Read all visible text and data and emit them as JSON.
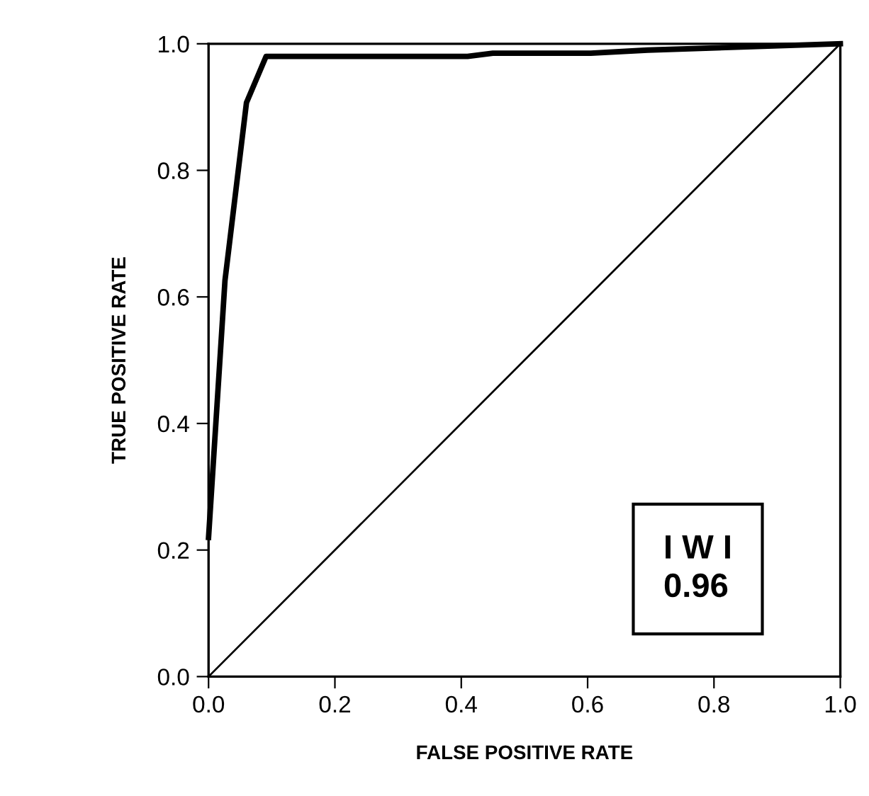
{
  "chart_data": {
    "type": "line",
    "xlabel": "FALSE POSITIVE RATE",
    "ylabel": "TRUE POSITIVE RATE",
    "xlim": [
      0,
      1
    ],
    "ylim": [
      0,
      1
    ],
    "xticks": [
      {
        "value": 0,
        "label": "0.0"
      },
      0.2,
      0.4,
      0.6,
      0.8,
      {
        "value": 1,
        "label": "1.0"
      }
    ],
    "yticks": [
      {
        "value": 0,
        "label": "0.0"
      },
      0.2,
      0.4,
      0.6,
      0.8,
      {
        "value": 1,
        "label": "1.0"
      }
    ],
    "grid": false,
    "legend": false,
    "marker": "none",
    "line_style": "solid",
    "series": [
      {
        "color": "#000000",
        "x": [
          0,
          0.026,
          0.06,
          0.091,
          0.41,
          0.45,
          0.605,
          0.695,
          1.0
        ],
        "values": [
          0.22,
          0.626,
          0.907,
          0.98,
          0.98,
          0.985,
          0.985,
          0.99,
          1.0
        ]
      },
      {
        "color": "#000000",
        "x": [
          0,
          1
        ],
        "values": [
          0,
          1
        ]
      }
    ],
    "annotations": [
      "I W I\n0.96"
    ]
  }
}
